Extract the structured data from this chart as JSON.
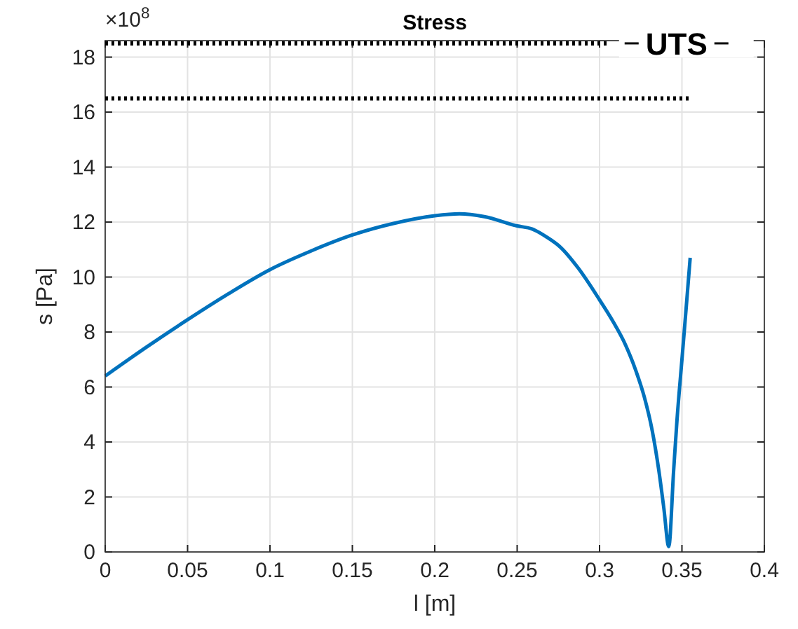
{
  "chart_data": {
    "type": "line",
    "title": "Stress",
    "xlabel": "l [m]",
    "ylabel": "s [Pa]",
    "annotations": [
      "×10$^{8}$"
    ],
    "x": [
      0,
      0.025,
      0.05,
      0.075,
      0.1,
      0.125,
      0.15,
      0.175,
      0.2,
      0.215,
      0.23,
      0.25,
      0.259,
      0.268,
      0.276,
      0.287,
      0.3,
      0.308,
      0.316,
      0.322,
      0.327,
      0.332,
      0.336,
      0.339,
      0.342,
      0.345,
      0.347,
      0.35,
      0.353,
      0.355
    ],
    "series": [
      {
        "color": "#0072bd",
        "values": [
          6.4,
          7.45,
          8.45,
          9.4,
          10.27,
          10.95,
          11.53,
          11.95,
          12.23,
          12.3,
          12.2,
          11.86,
          11.75,
          11.45,
          11.1,
          10.33,
          9.17,
          8.4,
          7.5,
          6.6,
          5.67,
          4.4,
          2.95,
          1.6,
          0.2,
          3.0,
          4.8,
          7.0,
          9.2,
          10.7
        ]
      }
    ],
    "xlim": [
      0,
      0.4
    ],
    "xticks": [
      0,
      0.05,
      0.1,
      0.15,
      0.2,
      0.25,
      0.3,
      0.35,
      0.4
    ],
    "ylim": [
      0,
      18.6
    ],
    "yticks": [
      0,
      2,
      4,
      6,
      8,
      10,
      12,
      14,
      16,
      18
    ],
    "ref_lines": [
      {
        "axis": "y",
        "value": 18.5,
        "label": "UTS",
        "color": "#000000",
        "line_style": "dotted"
      },
      {
        "axis": "y",
        "value": 16.5,
        "color": "#000000",
        "line_style": "dotted"
      }
    ],
    "grid": true,
    "marker": "none",
    "line_style": "solid"
  }
}
